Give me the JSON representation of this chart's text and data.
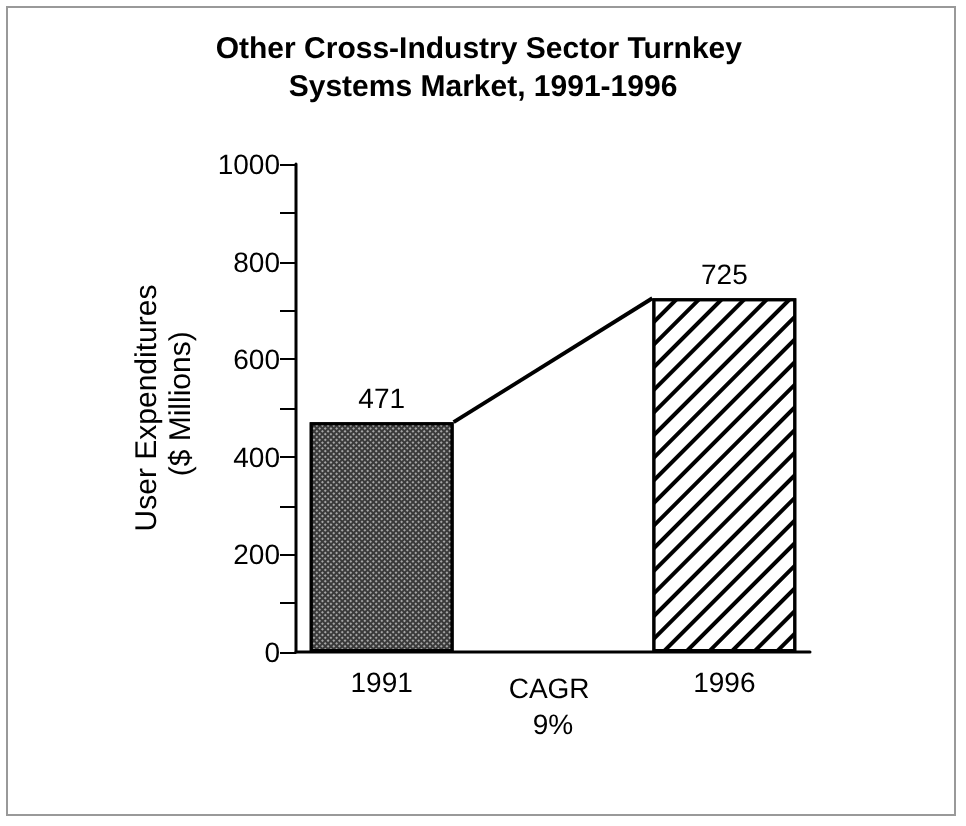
{
  "chart_data": {
    "type": "bar",
    "title": "Other Cross-Industry Sector Turnkey Systems Market, 1991-1996",
    "ylabel": "User Expenditures ($ Millions)",
    "categories": [
      "1991",
      null,
      "1996"
    ],
    "values": [
      471,
      null,
      725
    ],
    "colors": [
      "#3a3a3a",
      null,
      "#000000"
    ],
    "ylim": [
      0,
      1000
    ],
    "yticks": [
      0,
      {
        "value": 100,
        "label": null
      },
      200,
      {
        "value": 300,
        "label": null
      },
      400,
      {
        "value": 500,
        "label": null
      },
      600,
      {
        "value": 700,
        "label": null
      },
      800,
      {
        "value": 900,
        "label": null
      },
      1000
    ],
    "data_labels": true,
    "annotations": [
      "CAGR 9%"
    ]
  }
}
